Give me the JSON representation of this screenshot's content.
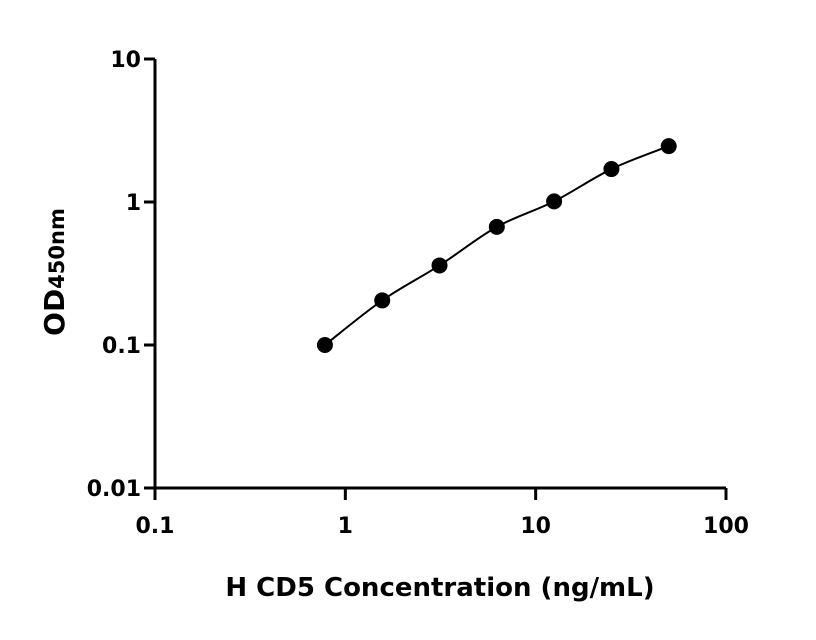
{
  "chart_data": {
    "type": "scatter",
    "title": "",
    "xlabel": "H CD5 Concentration (ng/mL)",
    "ylabel_main": "OD",
    "ylabel_sub": "450nm",
    "xscale": "log",
    "yscale": "log",
    "xlim": [
      0.1,
      100
    ],
    "ylim": [
      0.01,
      10
    ],
    "xticks": [
      "0.1",
      "1",
      "10",
      "100"
    ],
    "yticks": [
      "0.01",
      "0.1",
      "1",
      "10"
    ],
    "grid": false,
    "fit_curve": true,
    "marker_color": "#000000",
    "x": [
      0.78125,
      1.5625,
      3.125,
      6.25,
      12.5,
      25,
      50
    ],
    "y": [
      0.1,
      0.205,
      0.36,
      0.67,
      1.01,
      1.7,
      2.46
    ]
  }
}
